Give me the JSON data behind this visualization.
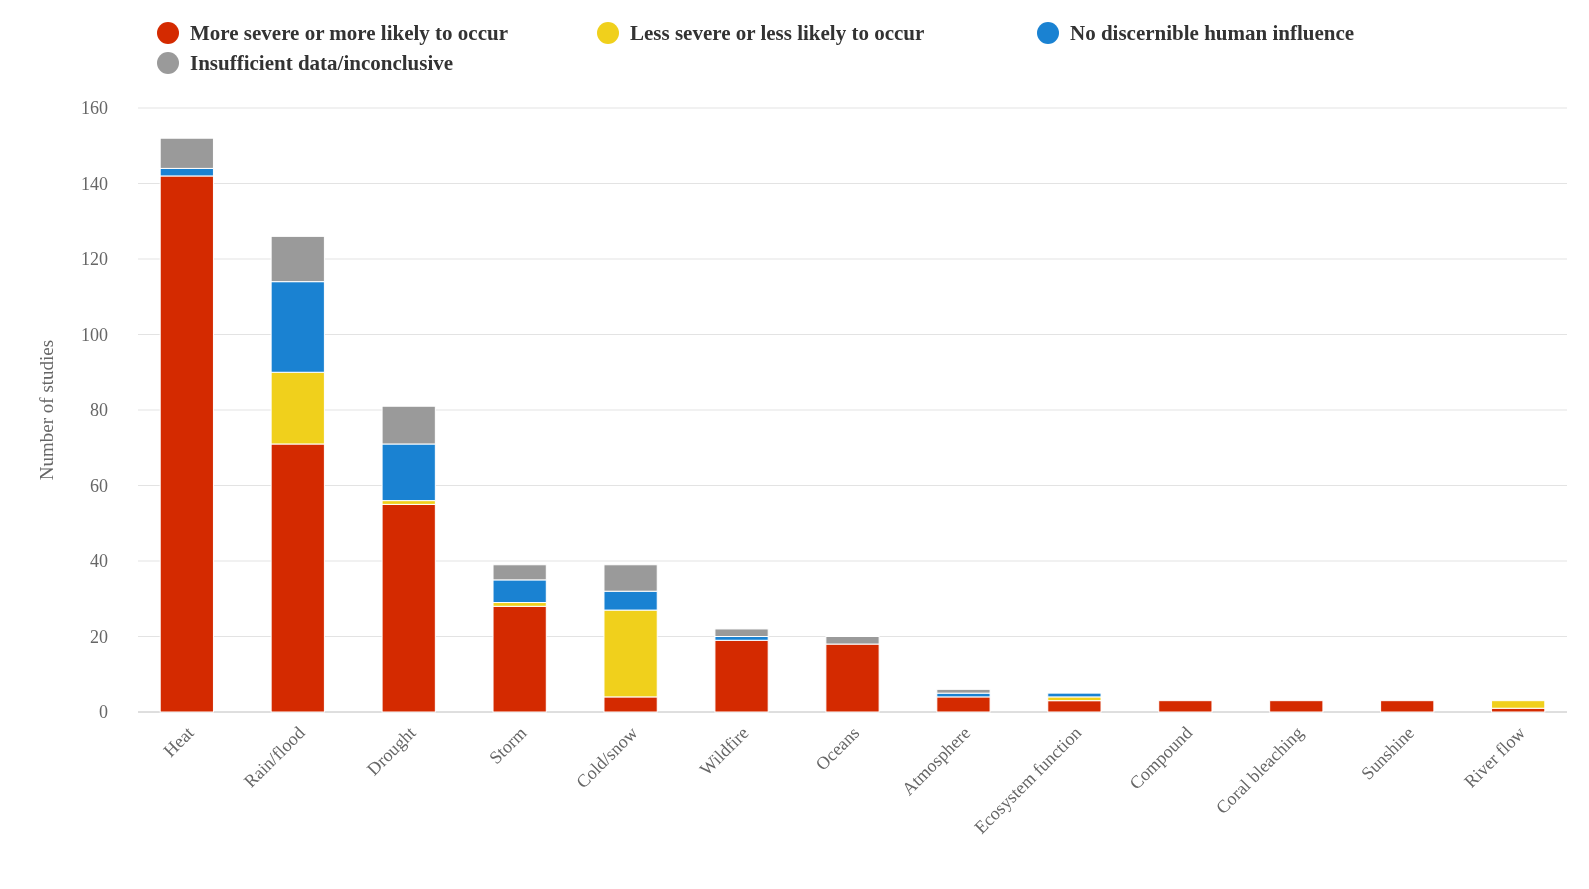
{
  "chart_data": {
    "type": "bar",
    "stacked": true,
    "ylabel": "Number of studies",
    "categories": [
      "Heat",
      "Rain/flood",
      "Drought",
      "Storm",
      "Cold/snow",
      "Wildfire",
      "Oceans",
      "Atmosphere",
      "Ecosystem function",
      "Compound",
      "Coral bleaching",
      "Sunshine",
      "River flow"
    ],
    "series": [
      {
        "name": "More severe or more likely to occur",
        "color": "#d42a00",
        "values": [
          142,
          71,
          55,
          28,
          4,
          19,
          18,
          4,
          3,
          3,
          3,
          3,
          1
        ]
      },
      {
        "name": "Less severe or less likely to occur",
        "color": "#f0d01c",
        "values": [
          0,
          19,
          1,
          1,
          23,
          0,
          0,
          0,
          1,
          0,
          0,
          0,
          2
        ]
      },
      {
        "name": "No discernible human influence",
        "color": "#1a82d2",
        "values": [
          2,
          24,
          15,
          6,
          5,
          1,
          0,
          1,
          1,
          0,
          0,
          0,
          0
        ]
      },
      {
        "name": "Insufficient data/inconclusive",
        "color": "#9a9a9a",
        "values": [
          8,
          12,
          10,
          4,
          7,
          2,
          2,
          1,
          0,
          0,
          0,
          0,
          0
        ]
      }
    ],
    "ylim": [
      0,
      160
    ],
    "yticks": [
      0,
      20,
      40,
      60,
      80,
      100,
      120,
      140,
      160
    ],
    "grid": "y",
    "legend": "top"
  }
}
